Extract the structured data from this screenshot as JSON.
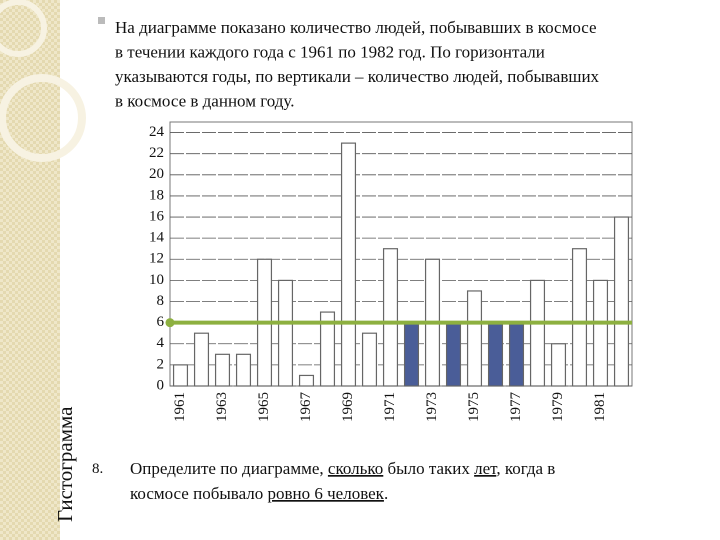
{
  "slide": {
    "bullet_lines": [
      "На диаграмме показано количество людей, побывавших в космосе",
      "в течении каждого года с 1961 по 1982 год. По горизонтали",
      "указываются годы, по вертикали – количество людей, побывавших",
      "в космосе в данном году."
    ],
    "side_title": "Гистограмма",
    "question_number": "8.",
    "question_lines": [
      [
        {
          "text": "Определите по диаграмме, ",
          "underline": false
        },
        {
          "text": "сколько",
          "underline": true
        },
        {
          "text": " было таких ",
          "underline": false
        },
        {
          "text": "лет",
          "underline": true
        },
        {
          "text": ", когда в",
          "underline": false
        }
      ],
      [
        {
          "text": "космосе побывало ",
          "underline": false
        },
        {
          "text": "ровно 6 человек",
          "underline": true
        },
        {
          "text": ".",
          "underline": false
        }
      ]
    ]
  },
  "chart_data": {
    "type": "bar",
    "categories": [
      "1961",
      null,
      "1963",
      null,
      "1965",
      null,
      "1967",
      null,
      "1969",
      null,
      "1971",
      null,
      "1973",
      null,
      "1975",
      null,
      "1977",
      null,
      "1979",
      null,
      "1981",
      null
    ],
    "values": [
      2,
      5,
      3,
      3,
      12,
      10,
      1,
      7,
      23,
      5,
      13,
      6,
      12,
      6,
      9,
      6,
      6,
      10,
      4,
      13,
      10,
      16
    ],
    "colors": [
      "#ffffff",
      "#ffffff",
      "#ffffff",
      "#ffffff",
      "#ffffff",
      "#ffffff",
      "#ffffff",
      "#ffffff",
      "#ffffff",
      "#ffffff",
      "#ffffff",
      "#4a5d98",
      "#ffffff",
      "#4a5d98",
      "#ffffff",
      "#4a5d98",
      "#4a5d98",
      "#ffffff",
      "#ffffff",
      "#ffffff",
      "#ffffff",
      "#ffffff"
    ],
    "ylim": [
      0,
      25
    ],
    "yticks": [
      0,
      2,
      4,
      6,
      8,
      10,
      12,
      14,
      16,
      18,
      20,
      22,
      24
    ],
    "grid": true,
    "reference_line": {
      "value": 6,
      "color": "#8db040"
    }
  }
}
